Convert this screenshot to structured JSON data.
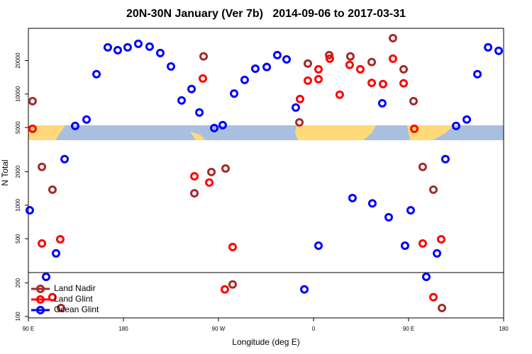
{
  "chart_data": {
    "type": "scatter",
    "title": "20N-30N January (Ver 7b)   2014-09-06 to 2017-03-31",
    "x_label": "Longitude (deg E)",
    "y_label": "N Total",
    "log_y": true,
    "legend_position": "lower left",
    "xlim": [
      90,
      540
    ],
    "ylim": [
      97,
      39000
    ],
    "xticks": [
      {
        "value": 90,
        "label": "90 E"
      },
      {
        "value": 180,
        "label": "180"
      },
      {
        "value": 270,
        "label": "90 W"
      },
      {
        "value": 360,
        "label": "0"
      },
      {
        "value": 450,
        "label": "90 E"
      },
      {
        "value": 540,
        "label": "180"
      }
    ],
    "yticks": [
      100,
      200,
      500,
      1000,
      2000,
      5000,
      10000,
      20000
    ],
    "series": [
      {
        "name": "Land Nadir",
        "color": "#a52a2a",
        "x": [
          94.0,
          102.8,
          112.8,
          120.9,
          255.9,
          247.2,
          263.3,
          276.7,
          283.4,
          346.6,
          354.6,
          374.8,
          394.9,
          415.1,
          435.2,
          445.3,
          454.7,
          463.4,
          473.5,
          481.6
        ],
        "values": [
          8630,
          2210,
          1380,
          119,
          21800,
          1280,
          1990,
          2140,
          194,
          5560,
          18800,
          22400,
          21800,
          19400,
          31800,
          16700,
          8630,
          2210,
          1380,
          119
        ]
      },
      {
        "name": "Land Glint",
        "color": "#ff0000",
        "x": [
          94.0,
          102.8,
          112.8,
          120.2,
          247.2,
          255.2,
          261.3,
          276.0,
          283.4,
          347.2,
          354.6,
          364.7,
          364.7,
          375.4,
          384.8,
          394.2,
          404.3,
          415.1,
          425.8,
          435.2,
          445.3,
          455.4,
          463.4,
          473.5,
          480.9
        ],
        "values": [
          4870,
          453,
          149,
          494,
          1820,
          13800,
          1600,
          175,
          421,
          9020,
          13200,
          13600,
          16700,
          20800,
          9860,
          18300,
          16700,
          12600,
          12300,
          20800,
          12500,
          4870,
          453,
          149,
          494
        ]
      },
      {
        "name": "Ocean Glint",
        "color": "#0000ff",
        "x": [
          91.3,
          106.8,
          116.2,
          124.3,
          134.3,
          145.1,
          154.5,
          165.2,
          174.6,
          184.0,
          194.1,
          204.8,
          214.9,
          225.0,
          235.1,
          244.5,
          251.9,
          266.0,
          274.0,
          284.8,
          294.8,
          304.9,
          315.7,
          325.7,
          334.5,
          343.2,
          351.3,
          364.7,
          396.9,
          415.7,
          425.1,
          431.2,
          446.6,
          452.0,
          466.8,
          476.9,
          484.9,
          495.0,
          505.1,
          515.2,
          525.3,
          535.3
        ],
        "values": [
          900,
          227,
          369,
          2600,
          5170,
          5900,
          15100,
          26300,
          24800,
          26300,
          28300,
          26700,
          23400,
          17700,
          8760,
          11100,
          6830,
          4940,
          5250,
          10100,
          13400,
          16900,
          17500,
          22400,
          20500,
          7560,
          175,
          433,
          1160,
          1040,
          8260,
          780,
          433,
          900,
          227,
          369,
          2600,
          5170,
          5900,
          15100,
          26300,
          24500
        ]
      }
    ]
  }
}
